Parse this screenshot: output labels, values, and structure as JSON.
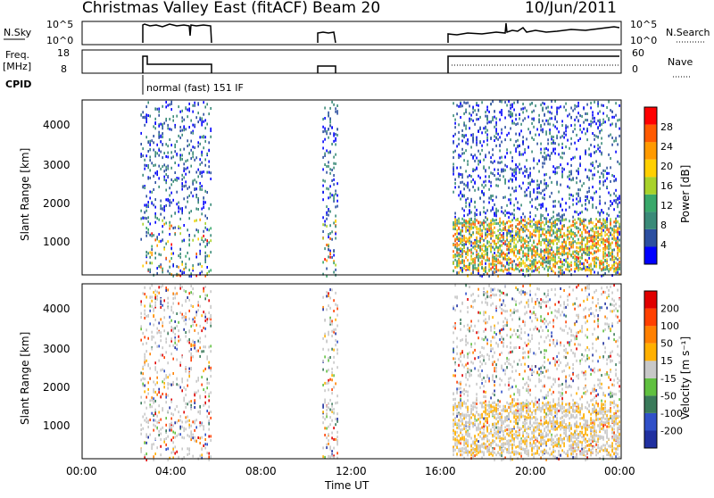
{
  "header": {
    "title": "Christmas Valley East (fitACF)",
    "beam": "Beam 20",
    "date": "10/Jun/2011"
  },
  "status_panels": {
    "nsky_label": "N.Sky",
    "nsky_top": "10^5",
    "nsky_bottom": "10^0",
    "nsearch_label": "N.Search",
    "nsearch_top": "10^5",
    "nsearch_bottom": "10^0",
    "freq_label": "Freq.",
    "freq_unit": "[MHz]",
    "freq_top": "18",
    "freq_bottom": "8",
    "nave_label": "Nave",
    "nave_top": "60",
    "nave_bottom": "0",
    "cpid_label": "CPID",
    "cpid_text": "normal (fast) 151 IF"
  },
  "chart_data": [
    {
      "type": "heatmap",
      "panel": "power",
      "ylabel": "Slant Range [km]",
      "colorbar_label": "Power [dB]",
      "colorbar_ticks": [
        "28",
        "24",
        "20",
        "16",
        "12",
        "8",
        "4"
      ],
      "colors": [
        "#0000ff",
        "#2c4fa0",
        "#3a8a78",
        "#39a86a",
        "#a8d22a",
        "#ffd000",
        "#ff9a00",
        "#ff5a00",
        "#ff0000"
      ],
      "ylim": [
        180,
        4500
      ],
      "yticks": [
        "1000",
        "2000",
        "3000",
        "4000"
      ],
      "xlim": [
        0,
        24
      ],
      "data_windows_ut": [
        [
          2.6,
          5.75
        ],
        [
          10.7,
          11.45
        ],
        [
          16.5,
          24.0
        ]
      ],
      "grid": false
    },
    {
      "type": "heatmap",
      "panel": "velocity",
      "ylabel": "Slant Range [km]",
      "colorbar_label": "Velocity [m s⁻¹]",
      "colorbar_ticks": [
        "200",
        "100",
        "50",
        "15",
        "-15",
        "-50",
        "-100",
        "-200"
      ],
      "colors": [
        "#2030a0",
        "#3050c8",
        "#3a7a5a",
        "#60c040",
        "#c8c8c8",
        "#ffb000",
        "#ff8000",
        "#ff4000",
        "#e00000"
      ],
      "ylim": [
        180,
        4500
      ],
      "yticks": [
        "1000",
        "2000",
        "3000",
        "4000"
      ],
      "xlim": [
        0,
        24
      ],
      "data_windows_ut": [
        [
          2.6,
          5.75
        ],
        [
          10.7,
          11.45
        ],
        [
          16.5,
          24.0
        ]
      ],
      "grid": false
    }
  ],
  "xaxis": {
    "ticks": [
      "00:00",
      "04:00",
      "08:00",
      "12:00",
      "16:00",
      "20:00",
      "00:00"
    ],
    "label": "Time UT"
  }
}
